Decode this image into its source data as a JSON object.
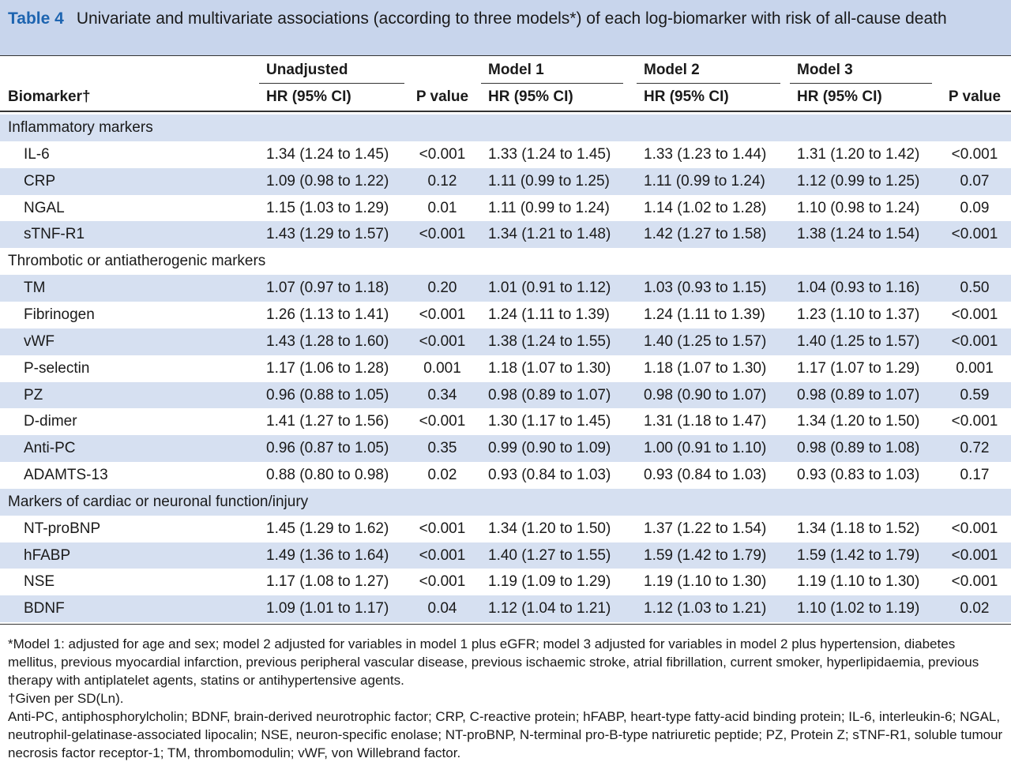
{
  "title": {
    "label": "Table 4",
    "text": "Univariate and multivariate associations (according to three models*) of each log-biomarker with risk of all-cause death"
  },
  "table": {
    "group_headers": [
      "Unadjusted",
      "Model 1",
      "Model 2",
      "Model 3"
    ],
    "column_headers": [
      "Biomarker†",
      "HR (95% CI)",
      "P value",
      "HR (95% CI)",
      "HR (95% CI)",
      "HR (95% CI)",
      "P value"
    ],
    "sections": [
      {
        "name": "Inflammatory markers",
        "rows": [
          [
            "IL-6",
            "1.34 (1.24 to 1.45)",
            "<0.001",
            "1.33 (1.24 to 1.45)",
            "1.33 (1.23 to 1.44)",
            "1.31 (1.20 to 1.42)",
            "<0.001"
          ],
          [
            "CRP",
            "1.09 (0.98 to 1.22)",
            "0.12",
            "1.11 (0.99 to 1.25)",
            "1.11 (0.99 to 1.24)",
            "1.12 (0.99 to 1.25)",
            "0.07"
          ],
          [
            "NGAL",
            "1.15 (1.03 to 1.29)",
            "0.01",
            "1.11 (0.99 to 1.24)",
            "1.14 (1.02 to 1.28)",
            "1.10 (0.98 to 1.24)",
            "0.09"
          ],
          [
            "sTNF-R1",
            "1.43 (1.29 to 1.57)",
            "<0.001",
            "1.34 (1.21 to 1.48)",
            "1.42 (1.27 to 1.58)",
            "1.38 (1.24 to 1.54)",
            "<0.001"
          ]
        ]
      },
      {
        "name": "Thrombotic or antiatherogenic markers",
        "rows": [
          [
            "TM",
            "1.07 (0.97 to 1.18)",
            "0.20",
            "1.01 (0.91 to 1.12)",
            "1.03 (0.93 to 1.15)",
            "1.04 (0.93 to 1.16)",
            "0.50"
          ],
          [
            "Fibrinogen",
            "1.26 (1.13 to 1.41)",
            "<0.001",
            "1.24 (1.11 to 1.39)",
            "1.24 (1.11 to 1.39)",
            "1.23 (1.10 to 1.37)",
            "<0.001"
          ],
          [
            "vWF",
            "1.43 (1.28 to 1.60)",
            "<0.001",
            "1.38 (1.24 to 1.55)",
            "1.40 (1.25 to 1.57)",
            "1.40 (1.25 to 1.57)",
            "<0.001"
          ],
          [
            "P-selectin",
            "1.17 (1.06 to 1.28)",
            "0.001",
            "1.18 (1.07 to 1.30)",
            "1.18 (1.07 to 1.30)",
            "1.17 (1.07 to 1.29)",
            "0.001"
          ],
          [
            "PZ",
            "0.96 (0.88 to 1.05)",
            "0.34",
            "0.98 (0.89 to 1.07)",
            "0.98 (0.90 to 1.07)",
            "0.98 (0.89 to 1.07)",
            "0.59"
          ],
          [
            "D-dimer",
            "1.41 (1.27 to 1.56)",
            "<0.001",
            "1.30 (1.17 to 1.45)",
            "1.31 (1.18 to 1.47)",
            "1.34 (1.20 to 1.50)",
            "<0.001"
          ],
          [
            "Anti-PC",
            "0.96 (0.87 to 1.05)",
            "0.35",
            "0.99 (0.90 to 1.09)",
            "1.00 (0.91 to 1.10)",
            "0.98 (0.89 to 1.08)",
            "0.72"
          ],
          [
            "ADAMTS-13",
            "0.88 (0.80 to 0.98)",
            "0.02",
            "0.93 (0.84 to 1.03)",
            "0.93 (0.84 to 1.03)",
            "0.93 (0.83 to 1.03)",
            "0.17"
          ]
        ]
      },
      {
        "name": "Markers of cardiac or neuronal function/injury",
        "rows": [
          [
            "NT-proBNP",
            "1.45 (1.29 to 1.62)",
            "<0.001",
            "1.34 (1.20 to 1.50)",
            "1.37 (1.22 to 1.54)",
            "1.34 (1.18 to 1.52)",
            "<0.001"
          ],
          [
            "hFABP",
            "1.49 (1.36 to 1.64)",
            "<0.001",
            "1.40 (1.27 to 1.55)",
            "1.59 (1.42 to 1.79)",
            "1.59 (1.42 to 1.79)",
            "<0.001"
          ],
          [
            "NSE",
            "1.17 (1.08 to 1.27)",
            "<0.001",
            "1.19 (1.09 to 1.29)",
            "1.19 (1.10 to 1.30)",
            "1.19 (1.10 to 1.30)",
            "<0.001"
          ],
          [
            "BDNF",
            "1.09 (1.01 to 1.17)",
            "0.04",
            "1.12 (1.04 to 1.21)",
            "1.12 (1.03 to 1.21)",
            "1.10 (1.02 to 1.19)",
            "0.02"
          ]
        ]
      }
    ]
  },
  "footnotes": [
    "*Model 1: adjusted for age and sex; model 2 adjusted for variables in model 1 plus eGFR; model 3 adjusted for variables in model 2 plus hypertension, diabetes mellitus, previous myocardial infarction, previous peripheral vascular disease, previous ischaemic stroke, atrial fibrillation, current smoker, hyperlipidaemia, previous therapy with antiplatelet agents, statins or antihypertensive agents.",
    "†Given per SD(Ln).",
    "Anti-PC, antiphosphorylcholin; BDNF, brain-derived neurotrophic factor; CRP, C-reactive protein; hFABP, heart-type fatty-acid binding protein; IL-6, interleukin-6; NGAL, neutrophil-gelatinase-associated lipocalin; NSE, neuron-specific enolase; NT-proBNP, N-terminal pro-B-type natriuretic peptide; PZ, Protein Z; sTNF-R1, soluble tumour necrosis factor receptor-1; TM, thrombomodulin; vWF, von Willebrand factor."
  ]
}
